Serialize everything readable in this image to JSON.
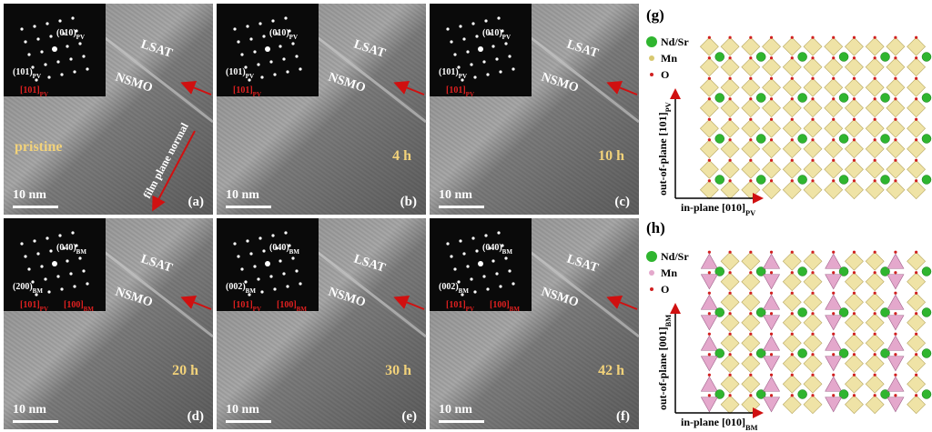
{
  "panels": [
    {
      "letter": "(a)",
      "condition": "pristine",
      "scale": "10 nm",
      "layers": [
        "LSAT",
        "NSMO"
      ],
      "annotation": "film plane normal",
      "fft": [
        {
          "text": "(010)",
          "sub": "PV",
          "color": "#ffffff"
        },
        {
          "text": "(101)",
          "sub": "PV",
          "color": "#ffffff"
        },
        {
          "text": "[101]",
          "sub": "PV",
          "color": "#e02020"
        }
      ]
    },
    {
      "letter": "(b)",
      "condition": "4 h",
      "scale": "10 nm",
      "layers": [
        "LSAT",
        "NSMO"
      ],
      "fft": [
        {
          "text": "(010)",
          "sub": "PV",
          "color": "#ffffff"
        },
        {
          "text": "(101)",
          "sub": "PV",
          "color": "#ffffff"
        },
        {
          "text": "[101]",
          "sub": "PV",
          "color": "#e02020"
        }
      ]
    },
    {
      "letter": "(c)",
      "condition": "10 h",
      "scale": "10 nm",
      "layers": [
        "LSAT",
        "NSMO"
      ],
      "fft": [
        {
          "text": "(010)",
          "sub": "PV",
          "color": "#ffffff"
        },
        {
          "text": "(101)",
          "sub": "PV",
          "color": "#ffffff"
        },
        {
          "text": "[101]",
          "sub": "PV",
          "color": "#e02020"
        }
      ]
    },
    {
      "letter": "(d)",
      "condition": "20 h",
      "scale": "10 nm",
      "layers": [
        "LSAT",
        "NSMO"
      ],
      "fft": [
        {
          "text": "(040)",
          "sub": "BM",
          "color": "#ffffff"
        },
        {
          "text": "(200)",
          "sub": "BM",
          "color": "#ffffff"
        },
        {
          "text": "[101]",
          "sub": "PV",
          "color": "#e02020"
        },
        {
          "text": "[100]",
          "sub": "BM",
          "color": "#e02020"
        }
      ]
    },
    {
      "letter": "(e)",
      "condition": "30 h",
      "scale": "10 nm",
      "layers": [
        "LSAT",
        "NSMO"
      ],
      "fft": [
        {
          "text": "(040)",
          "sub": "BM",
          "color": "#ffffff"
        },
        {
          "text": "(002)",
          "sub": "BM",
          "color": "#ffffff"
        },
        {
          "text": "[101]",
          "sub": "PV",
          "color": "#e02020"
        },
        {
          "text": "[100]",
          "sub": "BM",
          "color": "#e02020"
        }
      ]
    },
    {
      "letter": "(f)",
      "condition": "42 h",
      "scale": "10 nm",
      "layers": [
        "LSAT",
        "NSMO"
      ],
      "fft": [
        {
          "text": "(040)",
          "sub": "BM",
          "color": "#ffffff"
        },
        {
          "text": "(002)",
          "sub": "BM",
          "color": "#ffffff"
        },
        {
          "text": "[101]",
          "sub": "PV",
          "color": "#e02020"
        },
        {
          "text": "[100]",
          "sub": "BM",
          "color": "#e02020"
        }
      ]
    }
  ],
  "structures": [
    {
      "letter": "(g)",
      "legend": [
        "Nd/Sr",
        "Mn",
        "O"
      ],
      "y_axis": {
        "text": "out-of-plane [101]",
        "sub": "PV"
      },
      "x_axis": {
        "text": "in-plane [010]",
        "sub": "PV"
      },
      "kind": "perovskite"
    },
    {
      "letter": "(h)",
      "legend": [
        "Nd/Sr",
        "Mn",
        "O"
      ],
      "y_axis": {
        "text": "out-of-plane [001]",
        "sub": "BM"
      },
      "x_axis": {
        "text": "in-plane [010]",
        "sub": "BM"
      },
      "kind": "brownmillerite"
    }
  ]
}
